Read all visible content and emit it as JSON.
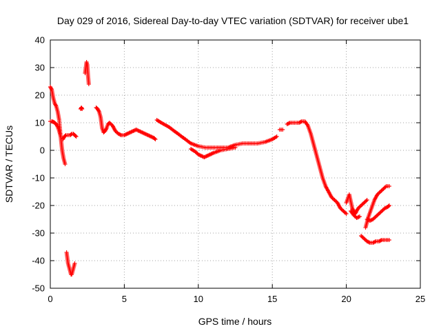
{
  "chart_data": {
    "type": "scatter",
    "title": "Day 029 of 2016, Sidereal Day-to-day VTEC variation (SDTVAR) for receiver ube1",
    "xlabel": "GPS time / hours",
    "ylabel": "SDTVAR / TECUs",
    "xlim": [
      0,
      25
    ],
    "ylim": [
      -50,
      40
    ],
    "xticks": [
      0,
      5,
      10,
      15,
      20,
      25
    ],
    "yticks": [
      -50,
      -40,
      -30,
      -20,
      -10,
      0,
      10,
      20,
      30,
      40
    ],
    "grid": true,
    "marker": "plus",
    "color": "#ff0000",
    "segments": [
      {
        "x": [
          0.0,
          0.1,
          0.2,
          0.3,
          0.4,
          0.5,
          0.6,
          0.7,
          0.8,
          0.9,
          1.0
        ],
        "y": [
          23,
          22,
          19,
          17,
          16,
          14,
          11,
          5,
          0,
          -3,
          -5
        ]
      },
      {
        "x": [
          0.0,
          0.1,
          0.2,
          0.3,
          0.4,
          0.5,
          0.6,
          0.7
        ],
        "y": [
          10.5,
          10.5,
          10.3,
          10,
          9.5,
          8.5,
          7,
          5
        ]
      },
      {
        "x": [
          0.85,
          0.95,
          1.05,
          1.15,
          1.25,
          1.35,
          1.45,
          1.55,
          1.65,
          1.75
        ],
        "y": [
          4,
          5,
          5.5,
          5.5,
          5.5,
          5.5,
          6,
          6,
          5.5,
          5
        ]
      },
      {
        "x": [
          1.1,
          1.15,
          1.2,
          1.25,
          1.3,
          1.35,
          1.4,
          1.45,
          1.5,
          1.55,
          1.6,
          1.65
        ],
        "y": [
          -37,
          -39,
          -41,
          -42,
          -43,
          -44,
          -45,
          -45,
          -44,
          -43,
          -42,
          -41
        ]
      },
      {
        "x": [
          2.05,
          2.1,
          2.15
        ],
        "y": [
          15,
          15.5,
          15
        ]
      },
      {
        "x": [
          2.35,
          2.4,
          2.45,
          2.5,
          2.55,
          2.6
        ],
        "y": [
          28,
          30,
          32,
          31,
          27,
          24
        ]
      },
      {
        "x": [
          3.1,
          3.2,
          3.3,
          3.4,
          3.5,
          3.6,
          3.7,
          3.8,
          3.9,
          4.0,
          4.2,
          4.4,
          4.6,
          4.8,
          5.0,
          5.2,
          5.4,
          5.6,
          5.8,
          6.0,
          6.2,
          6.4,
          6.6,
          6.8,
          7.0,
          7.1
        ],
        "y": [
          15.5,
          15,
          14,
          12,
          8,
          6.5,
          7,
          8,
          9.5,
          10,
          9,
          7,
          6,
          5.5,
          5.5,
          6,
          6.5,
          7,
          7.5,
          7,
          6.5,
          6,
          5.5,
          5,
          4.5,
          4
        ]
      },
      {
        "x": [
          7.2,
          7.5,
          8.0,
          8.5,
          9.0,
          9.5,
          10.0,
          10.5,
          11.0,
          11.5,
          12.0,
          12.5,
          13.0,
          13.5,
          14.0,
          14.5,
          15.0,
          15.3
        ],
        "y": [
          11,
          10,
          8.5,
          6.5,
          4.5,
          2.5,
          1.5,
          1,
          1,
          1,
          1,
          2,
          2.5,
          2.5,
          2.5,
          3,
          4,
          5
        ]
      },
      {
        "x": [
          9.5,
          9.8,
          10.0,
          10.2,
          10.4,
          10.6,
          10.8,
          11.0,
          11.5,
          12.0,
          12.5
        ],
        "y": [
          0.5,
          -0.5,
          -1.5,
          -2,
          -2.5,
          -2,
          -1.5,
          -1,
          0,
          0.5,
          1
        ]
      },
      {
        "x": [
          15.5,
          15.6,
          15.7
        ],
        "y": [
          7.5,
          7.5,
          7.5
        ]
      },
      {
        "x": [
          16.0,
          16.2,
          16.4,
          16.6,
          16.8,
          17.0,
          17.2,
          17.4,
          17.6,
          17.8,
          18.0,
          18.2,
          18.4,
          18.6,
          18.8,
          19.0,
          19.2,
          19.4,
          19.6,
          19.8,
          20.0
        ],
        "y": [
          9.5,
          10,
          10,
          10,
          10,
          10.5,
          10.5,
          9,
          6,
          2,
          -2,
          -6,
          -10,
          -13,
          -15,
          -17,
          -18,
          -19,
          -21,
          -22,
          -23
        ]
      },
      {
        "x": [
          20.0,
          20.2,
          20.4,
          20.5,
          20.6,
          20.8,
          21.0,
          21.2,
          21.4
        ],
        "y": [
          -19,
          -16,
          -21,
          -22,
          -23,
          -21,
          -20,
          -19,
          -18
        ]
      },
      {
        "x": [
          20.3,
          20.5,
          20.7,
          20.9
        ],
        "y": [
          -22,
          -23.5,
          -24.5,
          -24
        ]
      },
      {
        "x": [
          21.3,
          21.5,
          21.7,
          21.9,
          22.1,
          22.3,
          22.5,
          22.7,
          22.9
        ],
        "y": [
          -28,
          -24,
          -21,
          -18,
          -16,
          -15,
          -14,
          -13,
          -13
        ]
      },
      {
        "x": [
          21.4,
          21.6,
          21.8,
          22.0,
          22.2,
          22.4,
          22.6,
          22.8,
          22.9
        ],
        "y": [
          -25,
          -25.5,
          -25,
          -24,
          -23,
          -22,
          -21,
          -20.5,
          -20
        ]
      },
      {
        "x": [
          21.0,
          21.2,
          21.4,
          21.6,
          21.8,
          22.0,
          22.2,
          22.4,
          22.6,
          22.8,
          22.9
        ],
        "y": [
          -31,
          -32,
          -33,
          -33.5,
          -33.5,
          -33,
          -33,
          -32.5,
          -32.5,
          -32.5,
          -32.5
        ]
      }
    ]
  }
}
